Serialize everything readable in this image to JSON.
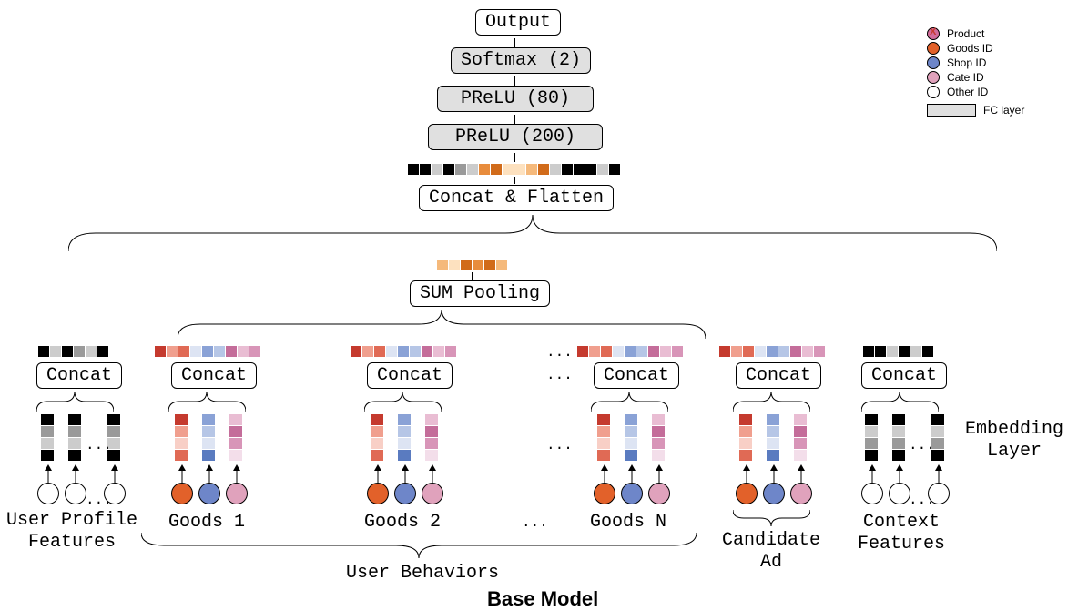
{
  "top_stack": {
    "output": "Output",
    "softmax": "Softmax (2)",
    "prelu1": "PReLU (80)",
    "prelu2": "PReLU (200)",
    "concat_flatten": "Concat & Flatten",
    "sum_pooling": "SUM Pooling"
  },
  "bottom_concat_label": "Concat",
  "groups": {
    "user_profile": "User Profile\nFeatures",
    "goods1": "Goods 1",
    "goods2": "Goods 2",
    "goodsN": "Goods N",
    "candidate": "Candidate\nAd",
    "context": "Context\nFeatures",
    "user_behaviors": "User Behaviors",
    "embedding_layer": "Embedding\nLayer"
  },
  "title": "Base Model",
  "legend": {
    "product": "Product",
    "goods_id": "Goods ID",
    "shop_id": "Shop ID",
    "cate_id": "Cate ID",
    "other_id": "Other ID",
    "fc_layer": "FC layer"
  },
  "ellipsis": "...",
  "colors": {
    "black": "#000000",
    "white": "#ffffff",
    "grey_l1": "#f0f0f0",
    "grey_l2": "#cccccc",
    "grey_l3": "#9a9a9a",
    "grey_d": "#555555",
    "fc_bg": "#e0e0e0",
    "orange_d": "#d16b1a",
    "orange_m": "#e88c3c",
    "orange_l": "#f5b97b",
    "orange_vl": "#fde1bf",
    "red_d": "#c53a2e",
    "red_m": "#e06a55",
    "red_l": "#f09f8e",
    "red_vl": "#f8cfc6",
    "blue_d": "#5a7bc0",
    "blue_m": "#8aa2d6",
    "blue_l": "#b6c6e6",
    "blue_vl": "#dde4f3",
    "pink_d": "#c46d9a",
    "pink_m": "#d895b8",
    "pink_l": "#e9bdd3",
    "pink_vl": "#f3deea",
    "goods_fill": "#e2612a",
    "shop_fill": "#6e86c9",
    "cate_fill": "#e0a2bc",
    "product_fill": "#d16b9a",
    "product_x": "#c53a2e"
  },
  "concat_flatten_cells": [
    "black",
    "black",
    "grey_l2",
    "black",
    "grey_l3",
    "grey_l2",
    "orange_m",
    "orange_d",
    "orange_vl",
    "orange_vl",
    "orange_l",
    "orange_d",
    "grey_l2",
    "black",
    "black",
    "black",
    "grey_l2",
    "black"
  ],
  "sum_pooling_cells": [
    "orange_l",
    "orange_vl",
    "orange_d",
    "orange_m",
    "orange_d",
    "orange_l"
  ],
  "user_profile_cells": [
    "black",
    "grey_l2",
    "black",
    "grey_l3",
    "grey_l2",
    "black"
  ],
  "goods_cells": [
    "red_d",
    "red_l",
    "red_m",
    "blue_vl",
    "blue_m",
    "blue_l",
    "pink_d",
    "pink_l",
    "pink_m"
  ],
  "context_cells": [
    "black",
    "black",
    "grey_l2",
    "black",
    "grey_l2",
    "black"
  ],
  "user_profile_vstack": [
    "black",
    "grey_l3",
    "grey_l2",
    "black"
  ],
  "context_vstack": [
    "black",
    "grey_l2",
    "grey_l3",
    "black"
  ],
  "goods_vstack_red": [
    "red_d",
    "red_l",
    "red_vl",
    "red_m"
  ],
  "goods_vstack_blue": [
    "blue_m",
    "blue_l",
    "blue_vl",
    "blue_d"
  ],
  "goods_vstack_pink": [
    "pink_l",
    "pink_d",
    "pink_m",
    "pink_vl"
  ],
  "circle_colors": {
    "white": "#ffffff",
    "goods": "#e2612a",
    "shop": "#6e86c9",
    "cate": "#e0a2bc"
  }
}
